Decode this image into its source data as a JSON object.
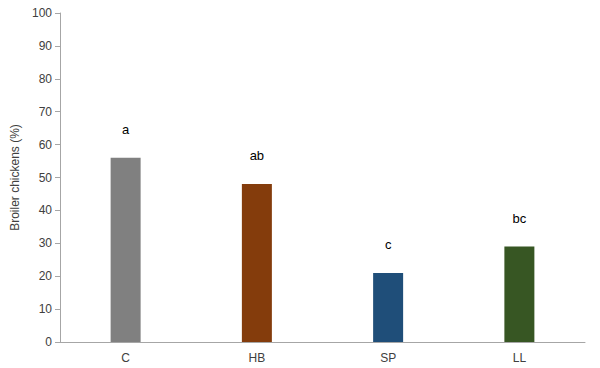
{
  "chart_data": {
    "type": "bar",
    "y_label": "Broiler chickens (%)",
    "categories": [
      "C",
      "HB",
      "SP",
      "LL"
    ],
    "values": [
      56,
      48,
      21,
      29
    ],
    "colors": [
      "#808080",
      "#843c0c",
      "#1f4e79",
      "#375623"
    ],
    "annotations": [
      "a",
      "ab",
      "c",
      "bc"
    ],
    "ylim": [
      0,
      100
    ],
    "yticks": [
      0,
      10,
      20,
      30,
      40,
      50,
      60,
      70,
      80,
      90,
      100
    ],
    "grid": false
  }
}
